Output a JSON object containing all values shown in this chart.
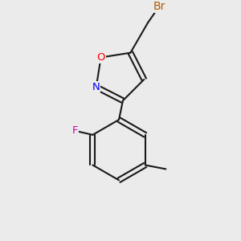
{
  "background_color": "#ebebeb",
  "bond_color": "#1a1a1a",
  "atom_colors": {
    "Br": "#b35a00",
    "O": "#ff0000",
    "N": "#0000ee",
    "F": "#cc00aa",
    "C": "#1a1a1a"
  },
  "figsize": [
    3.0,
    3.0
  ],
  "dpi": 100,
  "lw": 1.5
}
